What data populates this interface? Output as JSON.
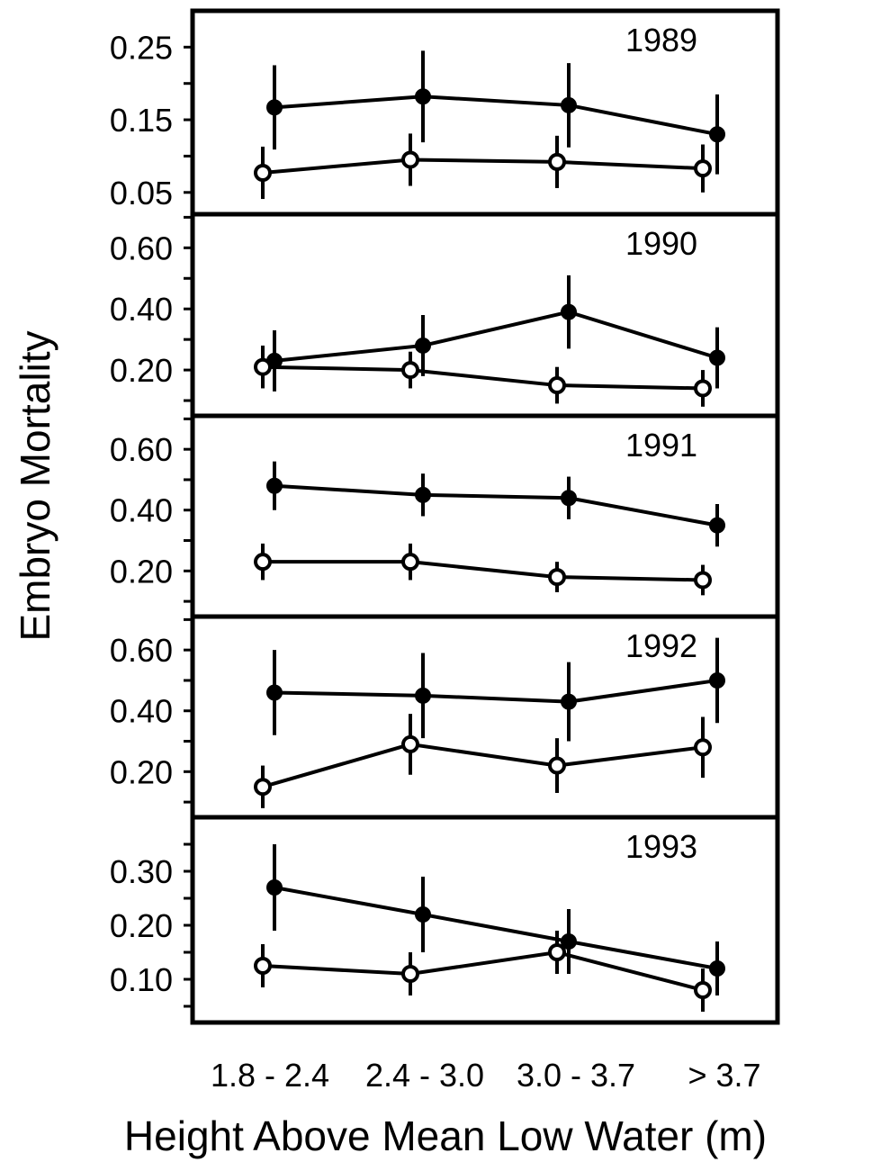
{
  "chart_data": {
    "type": "line",
    "xlabel": "Height Above Mean Low Water (m)",
    "ylabel": "Embryo Mortality",
    "categories": [
      "1.8 - 2.4",
      "2.4 - 3.0",
      "3.0 - 3.7",
      "> 3.7"
    ],
    "panels": [
      {
        "label": "1989",
        "ylim": [
          0.02,
          0.3
        ],
        "yticks": [
          "0.05",
          "0.15",
          "0.25"
        ],
        "series": [
          {
            "marker": "filled",
            "values": [
              0.167,
              0.182,
              0.17,
              0.13
            ],
            "errors": [
              0.058,
              0.063,
              0.058,
              0.055
            ]
          },
          {
            "marker": "open",
            "values": [
              0.077,
              0.095,
              0.092,
              0.083
            ],
            "errors": [
              0.036,
              0.036,
              0.036,
              0.033
            ]
          }
        ]
      },
      {
        "label": "1990",
        "ylim": [
          0.05,
          0.71
        ],
        "yticks": [
          "0.20",
          "0.40",
          "0.60"
        ],
        "series": [
          {
            "marker": "filled",
            "values": [
              0.23,
              0.28,
              0.39,
              0.24
            ],
            "errors": [
              0.1,
              0.1,
              0.12,
              0.1
            ]
          },
          {
            "marker": "open",
            "values": [
              0.21,
              0.2,
              0.15,
              0.14
            ],
            "errors": [
              0.07,
              0.06,
              0.06,
              0.06
            ]
          }
        ]
      },
      {
        "label": "1991",
        "ylim": [
          0.05,
          0.71
        ],
        "yticks": [
          "0.20",
          "0.40",
          "0.60"
        ],
        "series": [
          {
            "marker": "filled",
            "values": [
              0.48,
              0.45,
              0.44,
              0.35
            ],
            "errors": [
              0.08,
              0.07,
              0.07,
              0.07
            ]
          },
          {
            "marker": "open",
            "values": [
              0.23,
              0.23,
              0.18,
              0.17
            ],
            "errors": [
              0.06,
              0.06,
              0.05,
              0.05
            ]
          }
        ]
      },
      {
        "label": "1992",
        "ylim": [
          0.05,
          0.71
        ],
        "yticks": [
          "0.20",
          "0.40",
          "0.60"
        ],
        "series": [
          {
            "marker": "filled",
            "values": [
              0.46,
              0.45,
              0.43,
              0.5
            ],
            "errors": [
              0.14,
              0.14,
              0.13,
              0.14
            ]
          },
          {
            "marker": "open",
            "values": [
              0.15,
              0.29,
              0.22,
              0.28
            ],
            "errors": [
              0.07,
              0.1,
              0.09,
              0.1
            ]
          }
        ]
      },
      {
        "label": "1993",
        "ylim": [
          0.02,
          0.4
        ],
        "yticks": [
          "0.10",
          "0.20",
          "0.30"
        ],
        "series": [
          {
            "marker": "filled",
            "values": [
              0.27,
              0.22,
              0.17,
              0.12
            ],
            "errors": [
              0.08,
              0.07,
              0.06,
              0.05
            ]
          },
          {
            "marker": "open",
            "values": [
              0.125,
              0.11,
              0.15,
              0.08
            ],
            "errors": [
              0.04,
              0.04,
              0.04,
              0.04
            ]
          }
        ]
      }
    ]
  }
}
